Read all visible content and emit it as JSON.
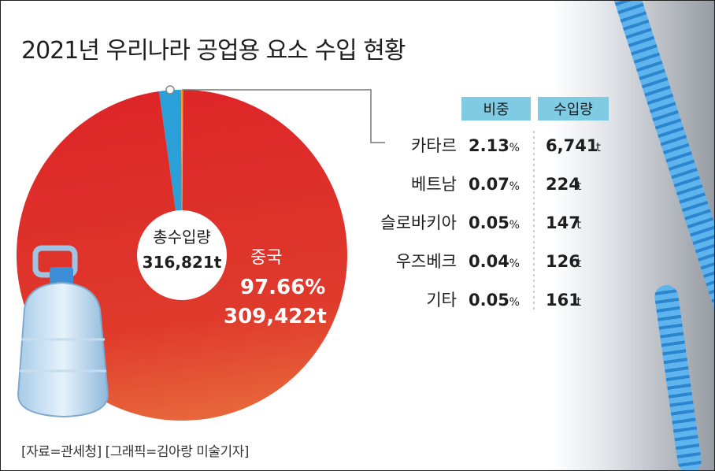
{
  "title": "2021년 우리나라 공업용 요소 수입 현황",
  "source": "[자료=관세청] [그래픽=김아랑 미술기자]",
  "colors": {
    "china": "#dd2b2a",
    "qatar": "#2a9fd8",
    "header_bg": "#7fcbe4",
    "others": "#f08c1e"
  },
  "table": {
    "headers": [
      "비중",
      "수입량"
    ]
  },
  "center": {
    "label": "총수입량",
    "value": "316,821t"
  },
  "main_label": {
    "name": "중국",
    "share": "97.66%",
    "amount": "309,422t"
  },
  "chart_data": {
    "type": "pie",
    "title": "2021년 우리나라 공업용 요소 수입 현황",
    "total": {
      "label": "총수입량",
      "value": "316,821t"
    },
    "slices": [
      {
        "label": "중국",
        "share": 97.66,
        "share_text": "97.66%",
        "amount": 309422,
        "amount_text": "309,422t"
      },
      {
        "label": "카타르",
        "share": 2.13,
        "share_text": "2.13%",
        "amount": 6741,
        "amount_text": "6,741t"
      },
      {
        "label": "베트남",
        "share": 0.07,
        "share_text": "0.07%",
        "amount": 224,
        "amount_text": "224t"
      },
      {
        "label": "슬로바키아",
        "share": 0.05,
        "share_text": "0.05%",
        "amount": 147,
        "amount_text": "147t"
      },
      {
        "label": "우즈베크",
        "share": 0.04,
        "share_text": "0.04%",
        "amount": 126,
        "amount_text": "126t"
      },
      {
        "label": "기타",
        "share": 0.05,
        "share_text": "0.05%",
        "amount": 161,
        "amount_text": "161t"
      }
    ]
  }
}
